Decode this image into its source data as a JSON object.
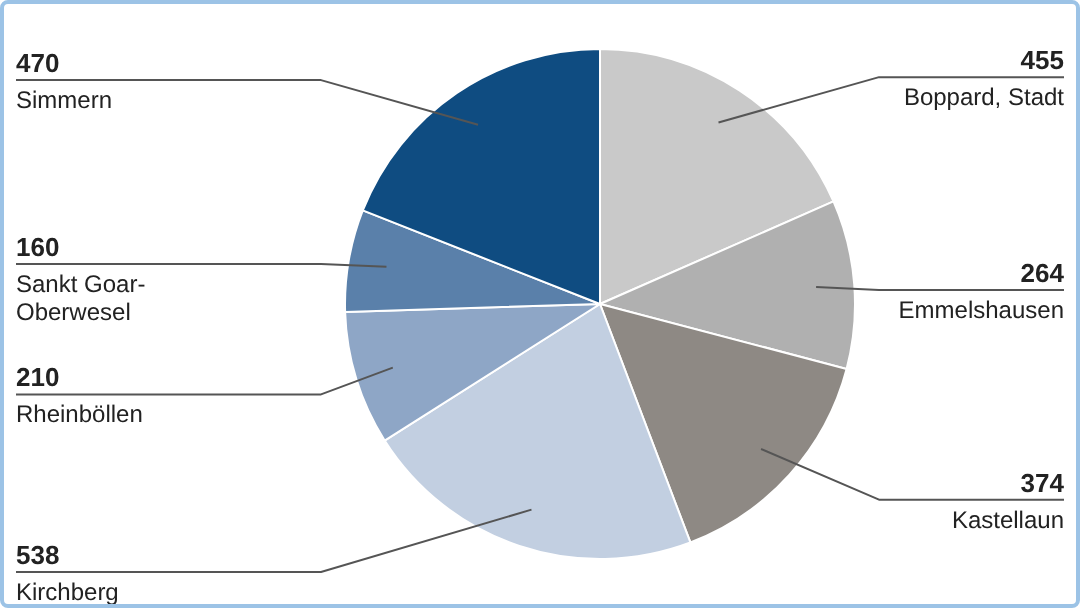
{
  "chart_data": {
    "type": "pie",
    "categories": [
      "Boppard, Stadt",
      "Emmelshausen",
      "Kastellaun",
      "Kirchberg",
      "Rheinböllen",
      "Sankt Goar-Oberwesel",
      "Simmern"
    ],
    "values": [
      455,
      264,
      374,
      538,
      210,
      160,
      470
    ],
    "colors": [
      "#c9c9c9",
      "#b0b0b0",
      "#8e8984",
      "#c2cfe1",
      "#8ea6c6",
      "#5a80aa",
      "#0f4c81"
    ],
    "data_labels": true,
    "legend": false
  }
}
